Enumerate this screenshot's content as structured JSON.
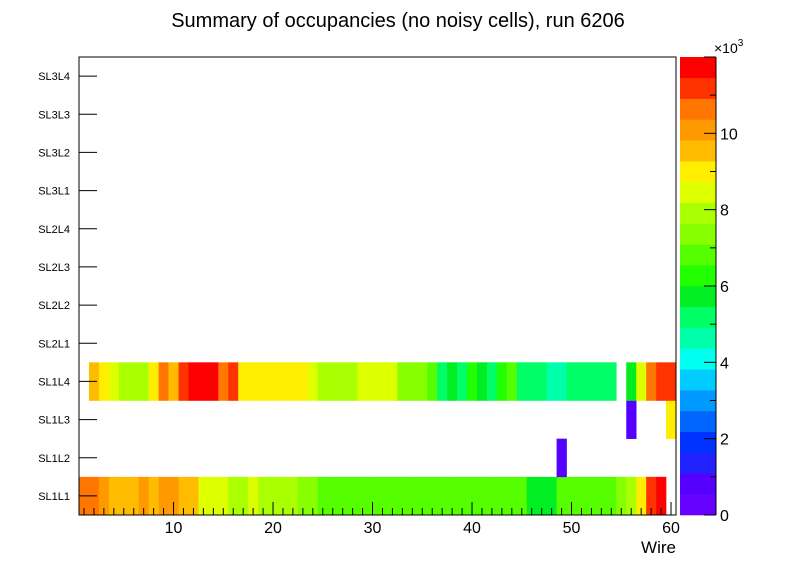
{
  "chart_data": {
    "type": "heatmap",
    "title": "Summary of occupancies (no noisy cells), run 6206",
    "xlabel": "Wire",
    "ylabel": "",
    "xlim": [
      0.5,
      60.5
    ],
    "x_ticks": [
      10,
      20,
      30,
      40,
      50,
      60
    ],
    "y_categories": [
      "SL1L1",
      "SL1L2",
      "SL1L3",
      "SL1L4",
      "SL2L1",
      "SL2L2",
      "SL2L3",
      "SL2L4",
      "SL3L1",
      "SL3L2",
      "SL3L3",
      "SL3L4"
    ],
    "z_range": [
      0,
      12000
    ],
    "z_ticks": [
      0,
      2,
      4,
      6,
      8,
      10
    ],
    "z_exponent_label": "×10",
    "z_exponent_power": "3",
    "palette": [
      "#6600ff",
      "#5500ff",
      "#2222ff",
      "#0033ff",
      "#0066ff",
      "#0099ff",
      "#00ccff",
      "#00ffee",
      "#00ffaa",
      "#00ff66",
      "#00ee22",
      "#22ff00",
      "#55ff00",
      "#88ff00",
      "#aaff00",
      "#ddff00",
      "#ffee00",
      "#ffbb00",
      "#ff9900",
      "#ff7700",
      "#ff3300",
      "#ff0000"
    ],
    "series": [
      {
        "name": "SL1L1",
        "values": [
          10500,
          10600,
          10000,
          9400,
          9400,
          9500,
          10000,
          9500,
          10200,
          10200,
          9400,
          9400,
          8600,
          8200,
          8200,
          8000,
          7800,
          8200,
          7800,
          7800,
          8000,
          7800,
          7600,
          7200,
          7000,
          6800,
          6800,
          6800,
          6800,
          6800,
          6600,
          6600,
          6600,
          6600,
          6600,
          6600,
          6600,
          6600,
          6600,
          6600,
          6800,
          6800,
          6800,
          6800,
          6800,
          5800,
          5800,
          5800,
          7000,
          6800,
          6800,
          6800,
          6800,
          6800,
          7200,
          7800,
          9000,
          11200,
          11800,
          0
        ]
      },
      {
        "name": "SL1L2",
        "values": [
          0,
          0,
          0,
          0,
          0,
          0,
          0,
          0,
          0,
          0,
          0,
          0,
          0,
          0,
          0,
          0,
          0,
          0,
          0,
          0,
          0,
          0,
          0,
          0,
          0,
          0,
          0,
          0,
          0,
          0,
          0,
          0,
          0,
          0,
          0,
          0,
          0,
          0,
          0,
          0,
          0,
          0,
          0,
          0,
          0,
          0,
          0,
          0,
          600,
          0,
          0,
          0,
          0,
          0,
          0,
          0,
          0,
          0,
          0,
          0
        ]
      },
      {
        "name": "SL1L3",
        "values": [
          0,
          0,
          0,
          0,
          0,
          0,
          0,
          0,
          0,
          0,
          0,
          0,
          0,
          0,
          0,
          0,
          0,
          0,
          0,
          0,
          0,
          0,
          0,
          0,
          0,
          0,
          0,
          0,
          0,
          0,
          0,
          0,
          0,
          0,
          0,
          0,
          0,
          0,
          0,
          0,
          0,
          0,
          0,
          0,
          0,
          0,
          0,
          0,
          0,
          0,
          0,
          0,
          0,
          0,
          0,
          600,
          0,
          0,
          0,
          9200
        ]
      },
      {
        "name": "SL1L4",
        "values": [
          0,
          9400,
          9000,
          8400,
          7800,
          7800,
          7800,
          9200,
          10400,
          9600,
          11400,
          11800,
          11800,
          11800,
          10800,
          11400,
          9000,
          9200,
          9000,
          9000,
          9000,
          9000,
          9000,
          8300,
          7800,
          7800,
          7800,
          7800,
          8300,
          8300,
          8600,
          8200,
          7400,
          7400,
          7400,
          7000,
          5200,
          5800,
          5200,
          6200,
          5800,
          5200,
          6200,
          7000,
          5200,
          5200,
          5200,
          4600,
          4600,
          5400,
          5400,
          5400,
          5400,
          5400,
          0,
          5800,
          8400,
          10400,
          11400,
          11400
        ]
      },
      {
        "name": "SL2L1",
        "values": []
      },
      {
        "name": "SL2L2",
        "values": []
      },
      {
        "name": "SL2L3",
        "values": []
      },
      {
        "name": "SL2L4",
        "values": []
      },
      {
        "name": "SL3L1",
        "values": []
      },
      {
        "name": "SL3L2",
        "values": []
      },
      {
        "name": "SL3L3",
        "values": []
      },
      {
        "name": "SL3L4",
        "values": []
      }
    ]
  }
}
